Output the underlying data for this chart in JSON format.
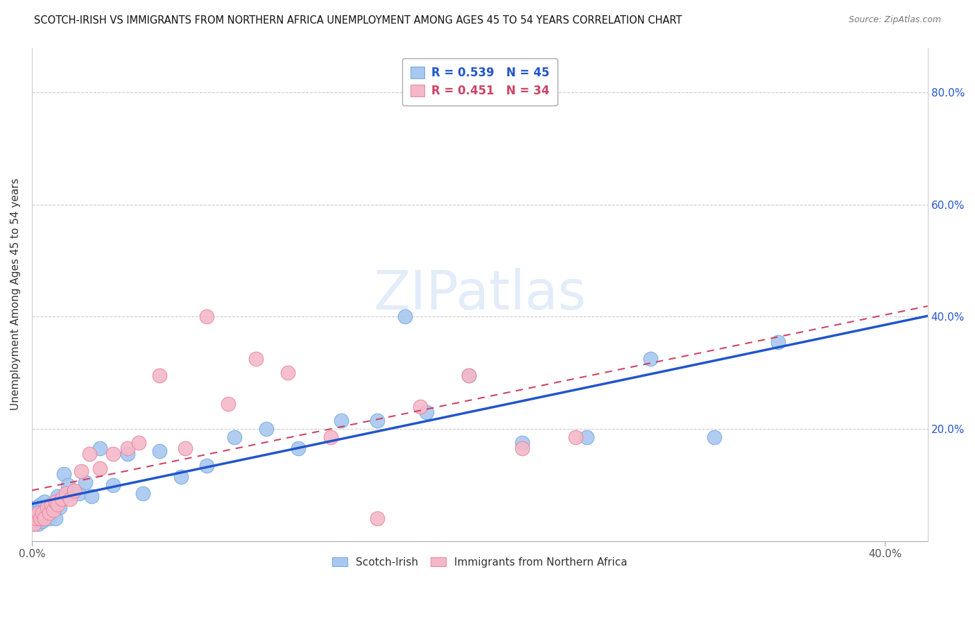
{
  "title": "SCOTCH-IRISH VS IMMIGRANTS FROM NORTHERN AFRICA UNEMPLOYMENT AMONG AGES 45 TO 54 YEARS CORRELATION CHART",
  "source": "Source: ZipAtlas.com",
  "ylabel": "Unemployment Among Ages 45 to 54 years",
  "xlim": [
    0.0,
    0.42
  ],
  "ylim": [
    0.0,
    0.88
  ],
  "x_ticks": [
    0.0,
    0.4
  ],
  "x_tick_labels": [
    "0.0%",
    "40.0%"
  ],
  "y_ticks": [
    0.0,
    0.2,
    0.4,
    0.6,
    0.8
  ],
  "y_tick_labels_right": [
    "",
    "20.0%",
    "40.0%",
    "60.0%",
    "80.0%"
  ],
  "grid_color": "#cccccc",
  "background_color": "#ffffff",
  "watermark": "ZIPatlas",
  "scotch_irish_R": 0.539,
  "scotch_irish_N": 45,
  "immigrants_R": 0.451,
  "immigrants_N": 34,
  "scotch_irish_color": "#a8c8f0",
  "immigrants_color": "#f5b8c8",
  "scotch_irish_line_color": "#2255cc",
  "immigrants_line_color": "#cc4466",
  "scotch_irish_x": [
    0.001,
    0.001,
    0.002,
    0.002,
    0.003,
    0.003,
    0.004,
    0.004,
    0.005,
    0.005,
    0.006,
    0.006,
    0.007,
    0.008,
    0.009,
    0.01,
    0.011,
    0.012,
    0.013,
    0.015,
    0.017,
    0.019,
    0.022,
    0.025,
    0.028,
    0.032,
    0.038,
    0.045,
    0.052,
    0.06,
    0.07,
    0.082,
    0.095,
    0.11,
    0.125,
    0.145,
    0.162,
    0.185,
    0.205,
    0.23,
    0.26,
    0.29,
    0.175,
    0.32,
    0.35
  ],
  "scotch_irish_y": [
    0.03,
    0.05,
    0.04,
    0.06,
    0.03,
    0.055,
    0.04,
    0.065,
    0.035,
    0.06,
    0.04,
    0.07,
    0.06,
    0.04,
    0.055,
    0.06,
    0.04,
    0.08,
    0.06,
    0.12,
    0.1,
    0.085,
    0.085,
    0.105,
    0.08,
    0.165,
    0.1,
    0.155,
    0.085,
    0.16,
    0.115,
    0.135,
    0.185,
    0.2,
    0.165,
    0.215,
    0.215,
    0.23,
    0.295,
    0.175,
    0.185,
    0.325,
    0.4,
    0.185,
    0.355
  ],
  "immigrants_x": [
    0.001,
    0.002,
    0.003,
    0.004,
    0.005,
    0.006,
    0.007,
    0.008,
    0.009,
    0.01,
    0.011,
    0.012,
    0.014,
    0.016,
    0.018,
    0.02,
    0.023,
    0.027,
    0.032,
    0.038,
    0.045,
    0.05,
    0.06,
    0.072,
    0.082,
    0.092,
    0.105,
    0.12,
    0.14,
    0.162,
    0.182,
    0.205,
    0.23,
    0.255
  ],
  "immigrants_y": [
    0.03,
    0.04,
    0.05,
    0.04,
    0.05,
    0.04,
    0.06,
    0.05,
    0.065,
    0.055,
    0.07,
    0.065,
    0.075,
    0.085,
    0.075,
    0.09,
    0.125,
    0.155,
    0.13,
    0.155,
    0.165,
    0.175,
    0.295,
    0.165,
    0.4,
    0.245,
    0.325,
    0.3,
    0.185,
    0.04,
    0.24,
    0.295,
    0.165,
    0.185
  ]
}
